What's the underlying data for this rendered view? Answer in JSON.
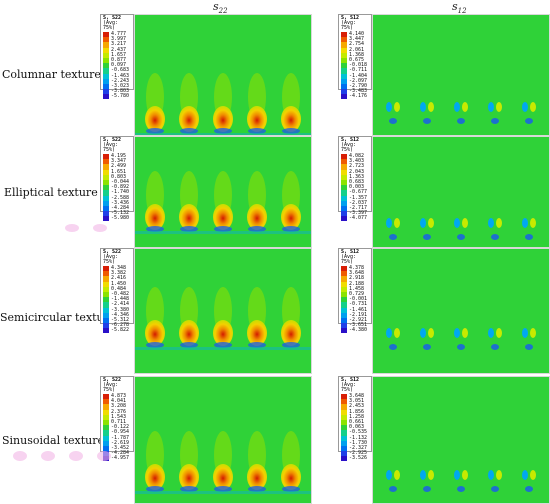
{
  "columns": {
    "left": {
      "symbol": "s",
      "subscript": "22"
    },
    "right": {
      "symbol": "s",
      "subscript": "12"
    }
  },
  "rows": [
    {
      "label": "Columnar texture",
      "s22": {
        "title": "S, S22",
        "avg": "(Avg: 75%)",
        "values": [
          "4.777",
          "3.997",
          "3.217",
          "2.437",
          "1.657",
          "0.877",
          "0.097",
          "-0.683",
          "-1.463",
          "-2.243",
          "-3.023",
          "-3.803",
          "-5.780"
        ]
      },
      "s12": {
        "title": "S, S12",
        "avg": "(Avg: 75%)",
        "values": [
          "4.140",
          "3.447",
          "2.754",
          "2.061",
          "1.368",
          "0.675",
          "-0.018",
          "-0.711",
          "-1.404",
          "-2.097",
          "-2.790",
          "-3.483",
          "-4.176"
        ]
      }
    },
    {
      "label": "Elliptical texture",
      "s22": {
        "title": "S, S22",
        "avg": "(Avg: 75%)",
        "values": [
          "4.195",
          "3.347",
          "2.499",
          "1.651",
          "0.803",
          "-0.044",
          "-0.892",
          "-1.740",
          "-2.588",
          "-3.436",
          "-4.284",
          "-5.132",
          "-5.980"
        ]
      },
      "s12": {
        "title": "S, S12",
        "avg": "(Avg: 75%)",
        "values": [
          "4.082",
          "3.403",
          "2.723",
          "2.043",
          "1.363",
          "0.683",
          "0.003",
          "-0.677",
          "-1.357",
          "-2.037",
          "-2.717",
          "-3.397",
          "-4.077"
        ]
      }
    },
    {
      "label": "Semicircular texture",
      "s22": {
        "title": "S, S22",
        "avg": "(Avg: 75%)",
        "values": [
          "4.348",
          "3.382",
          "2.416",
          "1.450",
          "0.484",
          "-0.482",
          "-1.448",
          "-2.414",
          "-3.380",
          "-4.346",
          "-5.312",
          "-6.278",
          "-5.822"
        ]
      },
      "s12": {
        "title": "S, S12",
        "avg": "(Avg: 75%)",
        "values": [
          "4.378",
          "3.648",
          "2.918",
          "2.188",
          "1.458",
          "0.729",
          "-0.001",
          "-0.731",
          "-1.461",
          "-2.191",
          "-2.921",
          "-3.651",
          "-4.380"
        ]
      }
    },
    {
      "label": "Sinusoidal texture",
      "s22": {
        "title": "S, S22",
        "avg": "(Avg: 75%)",
        "values": [
          "4.873",
          "4.041",
          "3.208",
          "2.376",
          "1.543",
          "0.711",
          "-0.122",
          "-0.954",
          "-1.787",
          "-2.619",
          "-3.452",
          "-4.284",
          "-4.957"
        ]
      },
      "s12": {
        "title": "S, S12",
        "avg": "(Avg: 75%)",
        "values": [
          "3.648",
          "3.051",
          "2.453",
          "1.856",
          "1.258",
          "0.661",
          "0.063",
          "-0.535",
          "-1.132",
          "-1.730",
          "-2.327",
          "-2.925",
          "-3.526"
        ]
      }
    }
  ],
  "colors": {
    "panel_green": "#2fd238",
    "scale": [
      "#d81e05",
      "#ef5a00",
      "#f6a800",
      "#f1dc00",
      "#c4ea00",
      "#8be300",
      "#2fd238",
      "#14d08a",
      "#00c2d6",
      "#00a0ee",
      "#0070f0",
      "#2040e8",
      "#2a10c8"
    ]
  }
}
